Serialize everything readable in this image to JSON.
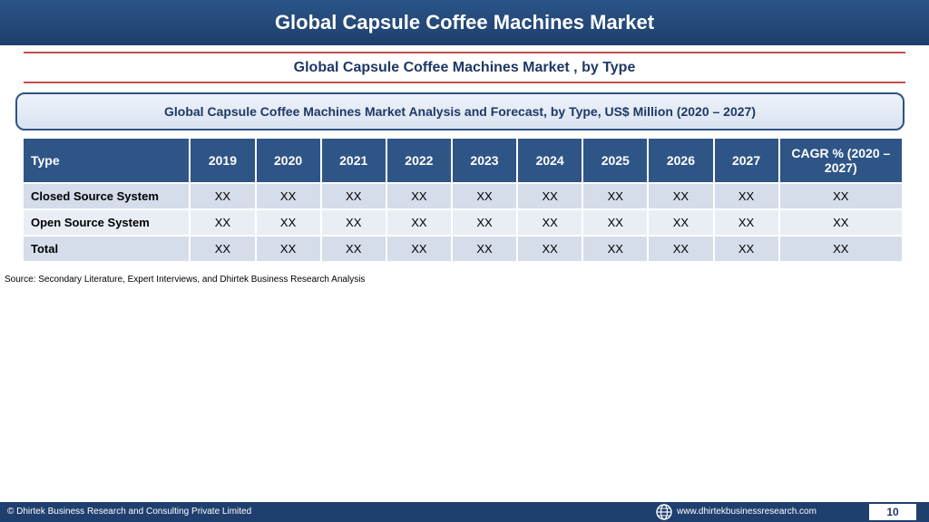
{
  "header": {
    "title": "Global Capsule Coffee Machines Market"
  },
  "subtitle": "Global Capsule Coffee Machines Market , by Type",
  "analysis_box": {
    "text": "Global Capsule Coffee Machines Market  Analysis and Forecast, by Type, US$ Million (2020 – 2027)"
  },
  "table": {
    "headers": [
      "Type",
      "2019",
      "2020",
      "2021",
      "2022",
      "2023",
      "2024",
      "2025",
      "2026",
      "2027",
      "CAGR % (2020 – 2027)"
    ],
    "rows": [
      {
        "type": "Closed Source System",
        "values": [
          "XX",
          "XX",
          "XX",
          "XX",
          "XX",
          "XX",
          "XX",
          "XX",
          "XX",
          "XX"
        ]
      },
      {
        "type": "Open Source System",
        "values": [
          "XX",
          "XX",
          "XX",
          "XX",
          "XX",
          "XX",
          "XX",
          "XX",
          "XX",
          "XX"
        ]
      },
      {
        "type": "Total",
        "values": [
          "XX",
          "XX",
          "XX",
          "XX",
          "XX",
          "XX",
          "XX",
          "XX",
          "XX",
          "XX"
        ]
      }
    ]
  },
  "source": "Source: Secondary Literature, Expert Interviews, and Dhirtek Business Research Analysis",
  "footer": {
    "copyright": "© Dhirtek Business Research and Consulting Private Limited",
    "website": "www.dhirtekbusinessresearch.com",
    "page_number": "10",
    "web_icon": "globe-icon"
  },
  "colors": {
    "header_bg": "#1e3f6c",
    "table_header_bg": "#2f5587",
    "row_odd": "#d5dcea",
    "row_even": "#e9edf4",
    "accent_red": "#c0504d",
    "title_text": "#1f3864"
  }
}
